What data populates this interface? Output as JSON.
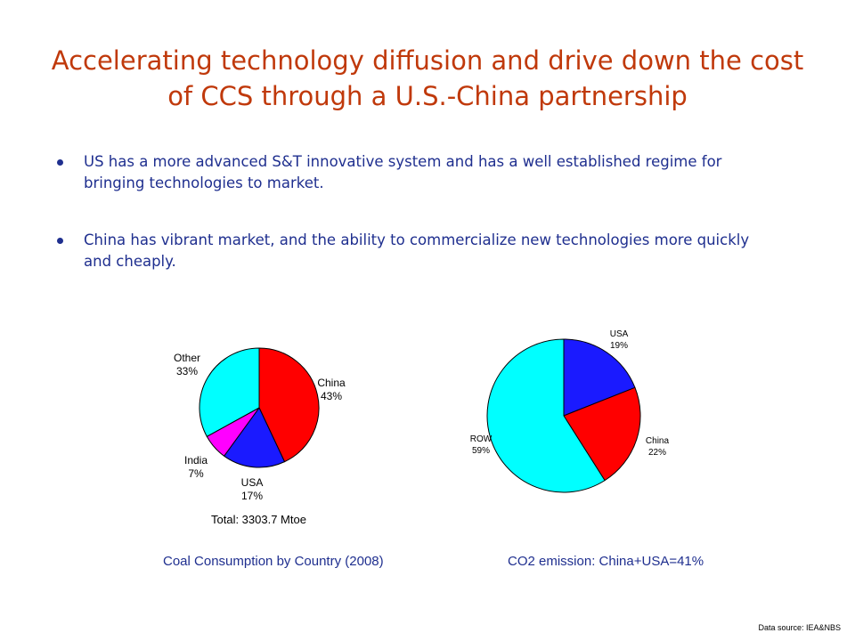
{
  "slide": {
    "title": "Accelerating technology diffusion and drive down the cost of CCS through a U.S.-China partnership",
    "bullets": [
      "US has a more advanced S&T innovative system and has a well established regime for bringing technologies to market.",
      "China has vibrant market, and the ability to commercialize new technologies more quickly and cheaply."
    ],
    "source": "Data source: IEA&NBS"
  },
  "chart_data": [
    {
      "type": "pie",
      "title": "Coal Consumption by Country  (2008)",
      "total_label": "Total:  3303.7 Mtoe",
      "slices": [
        {
          "name": "China",
          "value": 43,
          "label": "43%",
          "color": "#ff0000"
        },
        {
          "name": "USA",
          "value": 17,
          "label": "17%",
          "color": "#1a1aff"
        },
        {
          "name": "India",
          "value": 7,
          "label": "7%",
          "color": "#ff00ff"
        },
        {
          "name": "Other",
          "value": 33,
          "label": "33%",
          "color": "#00ffff"
        }
      ]
    },
    {
      "type": "pie",
      "title": "CO2 emission: China+USA=41%",
      "slices": [
        {
          "name": "USA",
          "value": 19,
          "label": "19%",
          "color": "#1a1aff"
        },
        {
          "name": "China",
          "value": 22,
          "label": "22%",
          "color": "#ff0000"
        },
        {
          "name": "ROW",
          "value": 59,
          "label": "59%",
          "color": "#00ffff"
        }
      ]
    }
  ]
}
